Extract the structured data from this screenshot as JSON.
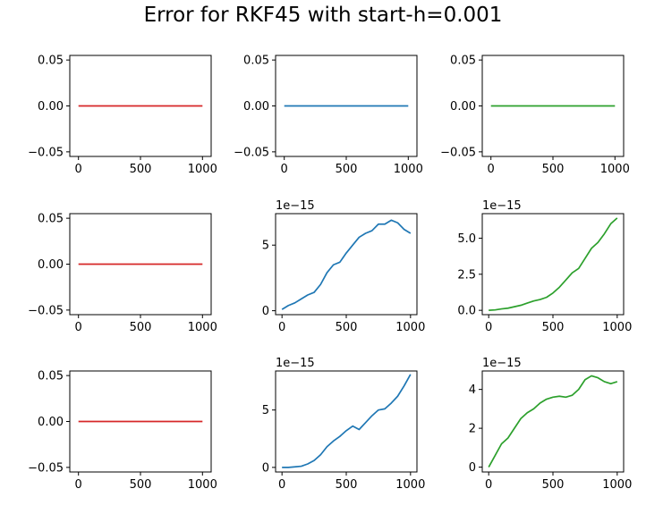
{
  "title": "Error for RKF45 with start-h=0.001",
  "colors": {
    "red": "#d62728",
    "blue": "#1f77b4",
    "green": "#2ca02c"
  },
  "chart_data": [
    {
      "type": "line",
      "row": 1,
      "col": 1,
      "color": "red",
      "xlim": [
        -70,
        1070
      ],
      "xticks": [
        0,
        500,
        1000
      ],
      "xtick_labels": [
        "0",
        "500",
        "1000"
      ],
      "ylim": [
        -0.055,
        0.055
      ],
      "yticks": [
        -0.05,
        0.0,
        0.05
      ],
      "ytick_labels": [
        "−0.05",
        "0.00",
        "0.05"
      ],
      "offset_label": "",
      "x": [
        0,
        1000
      ],
      "y": [
        0,
        0
      ]
    },
    {
      "type": "line",
      "row": 1,
      "col": 2,
      "color": "blue",
      "xlim": [
        -70,
        1070
      ],
      "xticks": [
        0,
        500,
        1000
      ],
      "xtick_labels": [
        "0",
        "500",
        "1000"
      ],
      "ylim": [
        -0.055,
        0.055
      ],
      "yticks": [
        -0.05,
        0.0,
        0.05
      ],
      "ytick_labels": [
        "−0.05",
        "0.00",
        "0.05"
      ],
      "offset_label": "",
      "x": [
        0,
        1000
      ],
      "y": [
        0,
        0
      ]
    },
    {
      "type": "line",
      "row": 1,
      "col": 3,
      "color": "green",
      "xlim": [
        -70,
        1070
      ],
      "xticks": [
        0,
        500,
        1000
      ],
      "xtick_labels": [
        "0",
        "500",
        "1000"
      ],
      "ylim": [
        -0.055,
        0.055
      ],
      "yticks": [
        -0.05,
        0.0,
        0.05
      ],
      "ytick_labels": [
        "−0.05",
        "0.00",
        "0.05"
      ],
      "offset_label": "",
      "x": [
        0,
        1000
      ],
      "y": [
        0,
        0
      ]
    },
    {
      "type": "line",
      "row": 2,
      "col": 1,
      "color": "red",
      "xlim": [
        -70,
        1070
      ],
      "xticks": [
        0,
        500,
        1000
      ],
      "xtick_labels": [
        "0",
        "500",
        "1000"
      ],
      "ylim": [
        -0.055,
        0.055
      ],
      "yticks": [
        -0.05,
        0.0,
        0.05
      ],
      "ytick_labels": [
        "−0.05",
        "0.00",
        "0.05"
      ],
      "offset_label": "",
      "x": [
        0,
        1000
      ],
      "y": [
        0,
        0
      ]
    },
    {
      "type": "line",
      "row": 2,
      "col": 2,
      "color": "blue",
      "xlim": [
        -50,
        1050
      ],
      "xticks": [
        0,
        500,
        1000
      ],
      "xtick_labels": [
        "0",
        "500",
        "1000"
      ],
      "ylim": [
        -0.3,
        7.4
      ],
      "yticks": [
        0,
        5
      ],
      "ytick_labels": [
        "0",
        "5"
      ],
      "offset_label": "1e−15",
      "x": [
        0,
        50,
        100,
        150,
        200,
        250,
        300,
        350,
        400,
        450,
        500,
        550,
        600,
        650,
        700,
        750,
        800,
        850,
        900,
        950,
        1000
      ],
      "y": [
        0.1,
        0.4,
        0.6,
        0.9,
        1.2,
        1.4,
        2.0,
        2.9,
        3.5,
        3.7,
        4.4,
        5.0,
        5.6,
        5.9,
        6.1,
        6.6,
        6.6,
        6.9,
        6.7,
        6.2,
        5.9
      ]
    },
    {
      "type": "line",
      "row": 2,
      "col": 3,
      "color": "green",
      "xlim": [
        -50,
        1050
      ],
      "xticks": [
        0,
        500,
        1000
      ],
      "xtick_labels": [
        "0",
        "500",
        "1000"
      ],
      "ylim": [
        -0.3,
        6.7
      ],
      "yticks": [
        0.0,
        2.5,
        5.0
      ],
      "ytick_labels": [
        "0.0",
        "2.5",
        "5.0"
      ],
      "offset_label": "1e−15",
      "x": [
        0,
        50,
        100,
        150,
        200,
        250,
        300,
        350,
        400,
        450,
        500,
        550,
        600,
        650,
        700,
        750,
        800,
        850,
        900,
        950,
        1000
      ],
      "y": [
        0.0,
        0.03,
        0.1,
        0.15,
        0.25,
        0.35,
        0.5,
        0.65,
        0.75,
        0.9,
        1.2,
        1.6,
        2.1,
        2.6,
        2.9,
        3.6,
        4.3,
        4.7,
        5.3,
        6.0,
        6.4
      ]
    },
    {
      "type": "line",
      "row": 3,
      "col": 1,
      "color": "red",
      "xlim": [
        -70,
        1070
      ],
      "xticks": [
        0,
        500,
        1000
      ],
      "xtick_labels": [
        "0",
        "500",
        "1000"
      ],
      "ylim": [
        -0.055,
        0.055
      ],
      "yticks": [
        -0.05,
        0.0,
        0.05
      ],
      "ytick_labels": [
        "−0.05",
        "0.00",
        "0.05"
      ],
      "offset_label": "",
      "x": [
        0,
        1000
      ],
      "y": [
        0,
        0
      ]
    },
    {
      "type": "line",
      "row": 3,
      "col": 2,
      "color": "blue",
      "xlim": [
        -50,
        1050
      ],
      "xticks": [
        0,
        500,
        1000
      ],
      "xtick_labels": [
        "0",
        "500",
        "1000"
      ],
      "ylim": [
        -0.4,
        8.4
      ],
      "yticks": [
        0,
        5
      ],
      "ytick_labels": [
        "0",
        "5"
      ],
      "offset_label": "1e−15",
      "x": [
        0,
        50,
        100,
        150,
        200,
        250,
        300,
        350,
        400,
        450,
        500,
        550,
        600,
        650,
        700,
        750,
        800,
        850,
        900,
        950,
        1000
      ],
      "y": [
        0.0,
        0.0,
        0.05,
        0.1,
        0.3,
        0.6,
        1.1,
        1.8,
        2.3,
        2.7,
        3.2,
        3.6,
        3.3,
        3.9,
        4.5,
        5.0,
        5.1,
        5.6,
        6.2,
        7.1,
        8.1
      ]
    },
    {
      "type": "line",
      "row": 3,
      "col": 3,
      "color": "green",
      "xlim": [
        -50,
        1050
      ],
      "xticks": [
        0,
        500,
        1000
      ],
      "xtick_labels": [
        "0",
        "500",
        "1000"
      ],
      "ylim": [
        -0.25,
        4.95
      ],
      "yticks": [
        0,
        2,
        4
      ],
      "ytick_labels": [
        "0",
        "2",
        "4"
      ],
      "offset_label": "1e−15",
      "x": [
        0,
        50,
        100,
        150,
        200,
        250,
        300,
        350,
        400,
        450,
        500,
        550,
        600,
        650,
        700,
        750,
        800,
        850,
        900,
        950,
        1000
      ],
      "y": [
        0.0,
        0.6,
        1.2,
        1.5,
        2.0,
        2.5,
        2.8,
        3.0,
        3.3,
        3.5,
        3.6,
        3.65,
        3.6,
        3.7,
        4.0,
        4.5,
        4.7,
        4.6,
        4.4,
        4.3,
        4.4
      ]
    }
  ]
}
